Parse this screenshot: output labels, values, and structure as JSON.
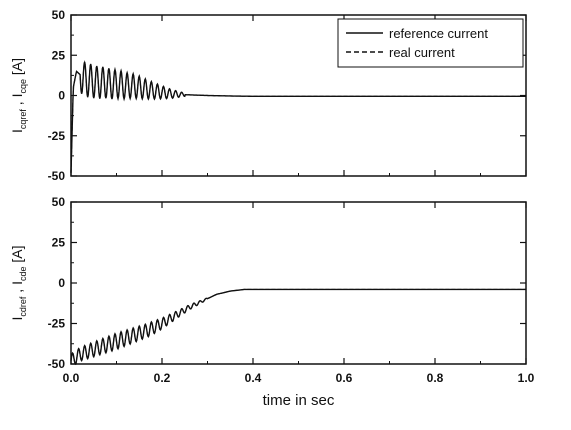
{
  "chart_data": [
    {
      "type": "line",
      "panel": "top",
      "ylabel": "I_cqref , I_cqe [A]",
      "ylabel_parts": {
        "sym1": "I",
        "sub1": "cqref",
        "sep": " , ",
        "sym2": "I",
        "sub2": "cqe",
        "unit": "[A]"
      },
      "xlim": [
        0,
        1.0
      ],
      "ylim": [
        -50,
        50
      ],
      "yticks": [
        {
          "value": 50,
          "label": "50"
        },
        {
          "value": 25,
          "label": "25"
        },
        {
          "value": 0,
          "label": "0"
        },
        {
          "value": -25,
          "label": "-25"
        },
        {
          "value": -50,
          "label": "-50"
        }
      ],
      "legend": {
        "placement": "top-right",
        "entries": [
          {
            "label": "reference current",
            "style": "solid"
          },
          {
            "label": "real current",
            "style": "dashed"
          }
        ]
      },
      "series": [
        {
          "name": "reference current",
          "style": "solid",
          "x": [
            0.0,
            0.005,
            0.012,
            0.02,
            0.03,
            0.045,
            0.06,
            0.075,
            0.09,
            0.105,
            0.12,
            0.135,
            0.15,
            0.165,
            0.18,
            0.2,
            0.22,
            0.25,
            0.3,
            0.35,
            0.4,
            0.5,
            0.6,
            0.7,
            0.8,
            0.9,
            1.0
          ],
          "y": [
            -48,
            5,
            15,
            13,
            10,
            9,
            8,
            8,
            7,
            7,
            6,
            6,
            5,
            4,
            3,
            2,
            1,
            0.5,
            0,
            -0.3,
            -0.5,
            -0.5,
            -0.5,
            -0.5,
            -0.5,
            -0.5,
            -0.5
          ],
          "oscillation": {
            "amplitude": [
              11,
              9,
              7,
              4,
              1
            ],
            "x": [
              0.02,
              0.1,
              0.15,
              0.2,
              0.25
            ],
            "freq_hz": 75
          }
        },
        {
          "name": "real current",
          "style": "dashed",
          "x": [
            0.0,
            0.005,
            0.012,
            0.02,
            0.03,
            0.045,
            0.06,
            0.075,
            0.09,
            0.105,
            0.12,
            0.135,
            0.15,
            0.165,
            0.18,
            0.2,
            0.22,
            0.25,
            0.3,
            0.35,
            0.4,
            0.5,
            0.6,
            0.7,
            0.8,
            0.9,
            1.0
          ],
          "y": [
            -48,
            5,
            15,
            13,
            10,
            9,
            8,
            8,
            7,
            7,
            6,
            6,
            5,
            4,
            3,
            2,
            1,
            0.5,
            0,
            -0.3,
            -0.5,
            -0.5,
            -0.5,
            -0.5,
            -0.5,
            -0.5,
            -0.5
          ],
          "oscillation": {
            "amplitude": [
              11,
              9,
              7,
              4,
              1
            ],
            "x": [
              0.02,
              0.1,
              0.15,
              0.2,
              0.25
            ],
            "freq_hz": 75
          }
        }
      ]
    },
    {
      "type": "line",
      "panel": "bottom",
      "ylabel": "I_cdref , I_cde [A]",
      "ylabel_parts": {
        "sym1": "I",
        "sub1": "cdref",
        "sep": " , ",
        "sym2": "I",
        "sub2": "cde",
        "unit": "[A]"
      },
      "xlabel": "time in sec",
      "xlim": [
        0,
        1.0
      ],
      "ylim": [
        -50,
        50
      ],
      "yticks": [
        {
          "value": 50,
          "label": "50"
        },
        {
          "value": 25,
          "label": "25"
        },
        {
          "value": 0,
          "label": "0"
        },
        {
          "value": -25,
          "label": "-25"
        },
        {
          "value": -50,
          "label": "-50"
        }
      ],
      "xticks": [
        {
          "value": 0.0,
          "label": "0.0"
        },
        {
          "value": 0.2,
          "label": "0.2"
        },
        {
          "value": 0.4,
          "label": "0.4"
        },
        {
          "value": 0.6,
          "label": "0.6"
        },
        {
          "value": 0.8,
          "label": "0.8"
        },
        {
          "value": 1.0,
          "label": "1.0"
        }
      ],
      "series": [
        {
          "name": "reference current",
          "style": "solid",
          "x": [
            0.0,
            0.02,
            0.05,
            0.08,
            0.11,
            0.14,
            0.17,
            0.2,
            0.23,
            0.26,
            0.29,
            0.32,
            0.35,
            0.38,
            0.4,
            0.45,
            0.5,
            0.6,
            0.7,
            0.8,
            0.9,
            1.0
          ],
          "y": [
            -48,
            -44,
            -41,
            -38,
            -35,
            -32,
            -29,
            -25,
            -20,
            -15,
            -11,
            -7,
            -5,
            -4,
            -4,
            -4,
            -4,
            -4,
            -4,
            -4,
            -4,
            -4
          ],
          "oscillation": {
            "amplitude": [
              4,
              5,
              4,
              2,
              0.5
            ],
            "x": [
              0.0,
              0.1,
              0.18,
              0.24,
              0.3
            ],
            "freq_hz": 75
          }
        },
        {
          "name": "real current",
          "style": "dashed",
          "x": [
            0.0,
            0.02,
            0.05,
            0.08,
            0.11,
            0.14,
            0.17,
            0.2,
            0.23,
            0.26,
            0.29,
            0.32,
            0.35,
            0.38,
            0.4,
            0.45,
            0.5,
            0.6,
            0.7,
            0.8,
            0.9,
            1.0
          ],
          "y": [
            -48,
            -44,
            -41,
            -38,
            -35,
            -32,
            -29,
            -25,
            -20,
            -15,
            -11,
            -7,
            -5,
            -4,
            -4,
            -4,
            -4,
            -4,
            -4,
            -4,
            -4,
            -4
          ],
          "oscillation": {
            "amplitude": [
              4,
              5,
              4,
              2,
              0.5
            ],
            "x": [
              0.0,
              0.1,
              0.18,
              0.24,
              0.3
            ],
            "freq_hz": 75
          }
        }
      ]
    }
  ]
}
